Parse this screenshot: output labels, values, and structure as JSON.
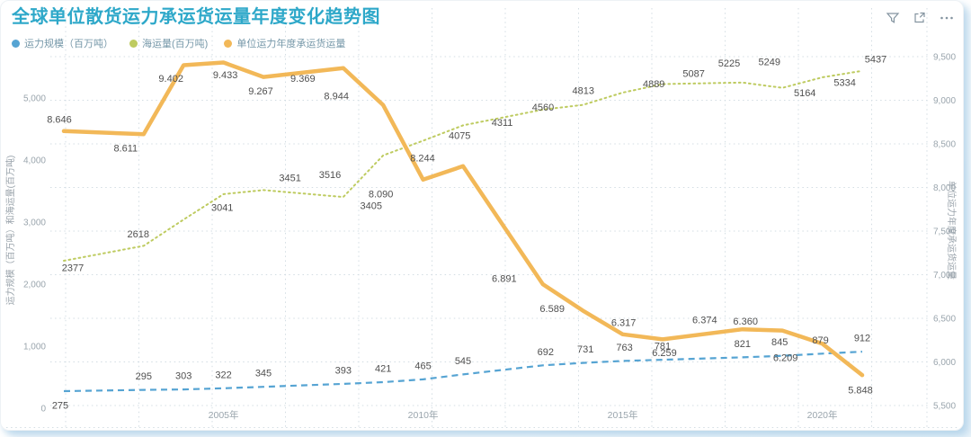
{
  "page": {
    "title": "全球单位散货运力承运货运量年度变化趋势图"
  },
  "toolbar": {
    "icons": [
      "filter",
      "focus-mode",
      "more-options"
    ]
  },
  "legend": {
    "items": [
      {
        "label": "运力规模（百万吨）",
        "color": "#56a4d3"
      },
      {
        "label": "海运量(百万吨)",
        "color": "#becb60"
      },
      {
        "label": "单位运力年度承运货运量",
        "color": "#f2b858"
      }
    ]
  },
  "chart_data": {
    "type": "line",
    "title": "全球单位散货运力承运货运量年度变化趋势图",
    "x": [
      2001,
      2003,
      2004,
      2005,
      2006,
      2008,
      2009,
      2010,
      2011,
      2013,
      2014,
      2015,
      2016,
      2018,
      2019,
      2020,
      2021
    ],
    "x_tick_labels": [
      {
        "label": "2005年",
        "year": 2005
      },
      {
        "label": "2010年",
        "year": 2010
      },
      {
        "label": "2015年",
        "year": 2015
      },
      {
        "label": "2020年",
        "year": 2020
      }
    ],
    "left_axis": {
      "title": "运力规模（百万吨）和海运量(百万吨)",
      "tick_labels": [
        "0",
        "1,000",
        "2,000",
        "3,000",
        "4,000",
        "5,000"
      ],
      "tick_values": [
        0,
        1000,
        2000,
        3000,
        4000,
        5000
      ],
      "range": [
        0,
        5666
      ]
    },
    "right_axis": {
      "title": "单位运力年度承运货运量",
      "tick_labels": [
        "5,500",
        "6,000",
        "6,500",
        "7,000",
        "7,500",
        "8,000",
        "8,500",
        "9,000",
        "9,500"
      ],
      "tick_values": [
        5500,
        6000,
        6500,
        7000,
        7500,
        8000,
        8500,
        9000,
        9500
      ],
      "range": [
        5500,
        9500
      ]
    },
    "series": [
      {
        "name": "运力规模（百万吨）",
        "axis": "left",
        "line_style": "dashed",
        "color": "#56a4d3",
        "values": [
          275,
          295,
          303,
          322,
          345,
          393,
          421,
          465,
          545,
          692,
          731,
          763,
          781,
          821,
          845,
          879,
          912
        ],
        "data_labels": [
          "275",
          "295",
          "303",
          "322",
          "345",
          "393",
          "421",
          "465",
          "545",
          "692",
          "731",
          "763",
          "781",
          "821",
          "845",
          "879",
          "912"
        ]
      },
      {
        "name": "海运量(百万吨)",
        "axis": "left",
        "line_style": "dotted",
        "color": "#becb60",
        "values": [
          2377,
          2618,
          3041,
          3451,
          3516,
          3405,
          4075,
          4311,
          4560,
          4813,
          4889,
          5087,
          5225,
          5249,
          5164,
          5334,
          5437
        ],
        "data_labels": [
          "2377",
          "2618",
          "3041",
          "3451",
          "3516",
          "3405",
          "4075",
          "4311",
          "4560",
          "4813",
          "4889",
          "5087",
          "5225",
          "5249",
          "5164",
          "5334",
          "5437"
        ]
      },
      {
        "name": "单位运力年度承运货运量",
        "axis": "right",
        "line_style": "solid",
        "color": "#f2b858",
        "values": [
          8646,
          8611,
          9402,
          9433,
          9267,
          9369,
          8944,
          8090,
          8244,
          6891,
          6589,
          6317,
          6259,
          6374,
          6360,
          6209,
          5848
        ],
        "data_labels": [
          "8.646",
          "8.611",
          "9.402",
          "9.433",
          "9.267",
          "9.369",
          "8.944",
          "8.090",
          "8.244",
          "6.891",
          "6.589",
          "6.317",
          "6.259",
          "6.374",
          "6.360",
          "6.209",
          "5.848"
        ]
      }
    ]
  }
}
